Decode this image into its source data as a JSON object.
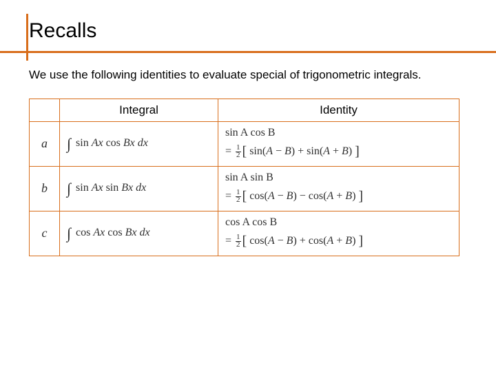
{
  "title": "Recalls",
  "intro": "We use the following identities to evaluate special of trigonometric integrals.",
  "table": {
    "border_color": "#d86d1a",
    "headers": {
      "col1": "",
      "col2": "Integral",
      "col3": "Identity"
    },
    "rows": [
      {
        "label": "a",
        "integral": "∫  sin Ax cos Bx dx",
        "identity_l1": "sin A  cos B",
        "identity_l2_pre": "= ",
        "identity_l2_post": "[ sin(A − B) + sin(A + B) ]"
      },
      {
        "label": "b",
        "integral": "∫  sin Ax sin Bx dx",
        "identity_l1": "sin A  sin B",
        "identity_l2_pre": "= ",
        "identity_l2_post": "[ cos(A − B) − cos(A + B) ]"
      },
      {
        "label": "c",
        "integral": "∫  cos Ax cos Bx dx",
        "identity_l1": "cos A cos B",
        "identity_l2_pre": "= ",
        "identity_l2_post": "[ cos(A − B) + cos(A + B) ]"
      }
    ]
  },
  "half": {
    "num": "1",
    "den": "2"
  }
}
